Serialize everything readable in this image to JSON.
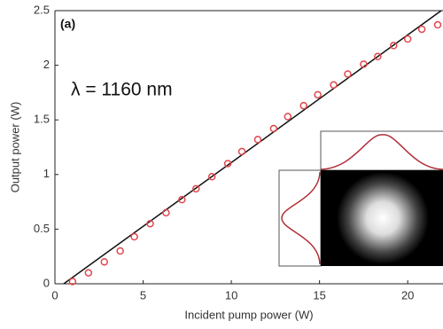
{
  "chart_data": {
    "type": "scatter",
    "panel_label": "(a)",
    "annotation": "λ = 1160 nm",
    "x_label": "Incident pump power (W)",
    "y_label": "Output power (W)",
    "xlim": [
      0,
      22
    ],
    "ylim": [
      0,
      2.5
    ],
    "xticks": [
      0,
      5,
      10,
      15,
      20
    ],
    "yticks": [
      0,
      0.5,
      1,
      1.5,
      2,
      2.5
    ],
    "series": [
      {
        "color": "#e0474c",
        "x": [
          1.0,
          1.9,
          2.8,
          3.7,
          4.5,
          5.4,
          6.3,
          7.2,
          8.0,
          8.9,
          9.8,
          10.6,
          11.5,
          12.4,
          13.2,
          14.1,
          14.9,
          15.8,
          16.6,
          17.5,
          18.3,
          19.2,
          20.0,
          20.8,
          21.7
        ],
        "values": [
          0.02,
          0.1,
          0.2,
          0.3,
          0.43,
          0.55,
          0.65,
          0.77,
          0.87,
          0.98,
          1.1,
          1.21,
          1.32,
          1.42,
          1.53,
          1.63,
          1.73,
          1.82,
          1.92,
          2.01,
          2.08,
          2.18,
          2.24,
          2.33,
          2.37
        ]
      }
    ],
    "fit_line": {
      "color": "#111111",
      "x": [
        0.5,
        21.9
      ],
      "values": [
        0,
        2.5
      ]
    }
  }
}
